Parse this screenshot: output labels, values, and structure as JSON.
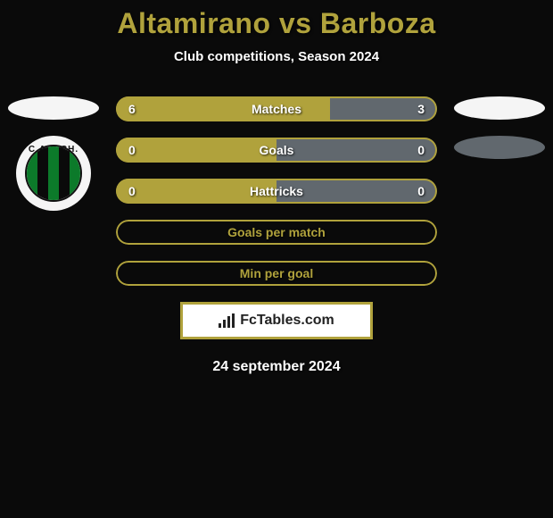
{
  "title": {
    "text": "Altamirano vs Barboza",
    "color": "#b0a23c",
    "fontsize": 32
  },
  "subtitle": {
    "text": "Club competitions, Season 2024",
    "fontsize": 15
  },
  "date": {
    "text": "24 september 2024",
    "fontsize": 16
  },
  "watermark": {
    "text": "FcTables.com",
    "border_color": "#b0a23c",
    "bg_color": "#ffffff"
  },
  "palette": {
    "left_color": "#b0a23c",
    "right_color": "#61686e",
    "background": "#0a0a0a",
    "text": "#ffffff"
  },
  "left_team": {
    "ellipse_color": "#f5f5f5",
    "crest": {
      "bg": "#f5f5f5",
      "ring_color": "#111111",
      "label": "C.A.N.CH.",
      "stripe_colors": [
        "#0c7a2a",
        "#0a0a0a",
        "#0c7a2a",
        "#0a0a0a",
        "#0c7a2a"
      ]
    }
  },
  "right_team": {
    "ellipse_colors": [
      "#f5f5f5",
      "#61686e"
    ]
  },
  "bars": [
    {
      "label": "Matches",
      "left_val": "6",
      "right_val": "3",
      "left_pct": 66.7,
      "right_pct": 33.3,
      "show_values": true,
      "fill_mode": "split"
    },
    {
      "label": "Goals",
      "left_val": "0",
      "right_val": "0",
      "left_pct": 50,
      "right_pct": 50,
      "show_values": true,
      "fill_mode": "split"
    },
    {
      "label": "Hattricks",
      "left_val": "0",
      "right_val": "0",
      "left_pct": 50,
      "right_pct": 50,
      "show_values": true,
      "fill_mode": "split"
    },
    {
      "label": "Goals per match",
      "left_val": "",
      "right_val": "",
      "left_pct": 0,
      "right_pct": 0,
      "show_values": false,
      "fill_mode": "empty"
    },
    {
      "label": "Min per goal",
      "left_val": "",
      "right_val": "",
      "left_pct": 0,
      "right_pct": 0,
      "show_values": false,
      "fill_mode": "empty"
    }
  ],
  "bar_style": {
    "height": 28,
    "radius": 14,
    "label_fontsize": 14,
    "border_color_empty": "#b0a23c",
    "border_color_split": "#b0a23c"
  }
}
